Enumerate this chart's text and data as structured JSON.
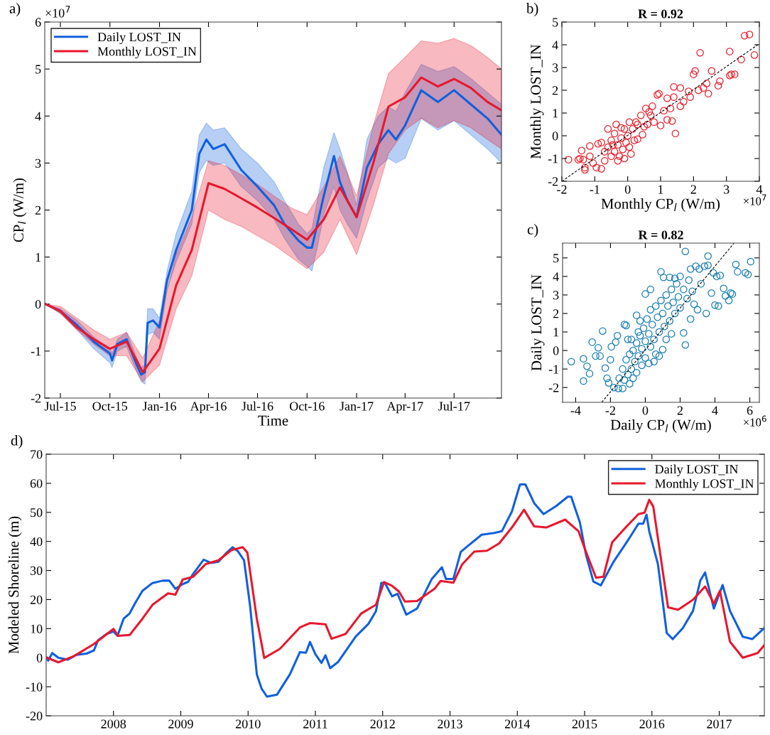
{
  "chart_data": [
    {
      "type": "line",
      "xlabel": "Time",
      "ylabel": "CP$_{l}$ (W/m)",
      "annotations": [
        "a)",
        "×10$^{7}$"
      ],
      "xlim": [
        "2015-06-02",
        "2017-09-27"
      ],
      "ylim": [
        -2,
        6
      ],
      "yticks": [
        -2,
        -1,
        0,
        1,
        2,
        3,
        4,
        5,
        6
      ],
      "xticks": [
        {
          "value": "2015-07-01",
          "label": "Jul-15"
        },
        {
          "value": "2015-10-01",
          "label": "Oct-15"
        },
        {
          "value": "2016-01-01",
          "label": "Jan-16"
        },
        {
          "value": "2016-04-01",
          "label": "Apr-16"
        },
        {
          "value": "2016-07-01",
          "label": "Jul-16"
        },
        {
          "value": "2016-10-01",
          "label": "Oct-16"
        },
        {
          "value": "2017-01-01",
          "label": "Jan-17"
        },
        {
          "value": "2017-04-01",
          "label": "Apr-17"
        },
        {
          "value": "2017-07-01",
          "label": "Jul-17"
        }
      ],
      "legend": "top left",
      "series": [
        {
          "name": "Daily LOST_IN",
          "color": "#1160dc",
          "x": [
            "2015-06-03",
            "2015-07-01",
            "2015-08-01",
            "2015-09-01",
            "2015-10-01",
            "2015-10-05",
            "2015-10-15",
            "2015-11-01",
            "2015-11-20",
            "2015-11-28",
            "2015-12-05",
            "2015-12-10",
            "2015-12-20",
            "2016-01-01",
            "2016-01-15",
            "2016-02-01",
            "2016-03-01",
            "2016-03-15",
            "2016-03-28",
            "2016-04-10",
            "2016-05-01",
            "2016-06-01",
            "2016-07-01",
            "2016-08-01",
            "2016-08-20",
            "2016-09-15",
            "2016-10-01",
            "2016-10-10",
            "2016-10-20",
            "2016-11-01",
            "2016-11-20",
            "2016-12-01",
            "2016-12-15",
            "2017-01-01",
            "2017-01-20",
            "2017-02-10",
            "2017-03-01",
            "2017-03-15",
            "2017-04-01",
            "2017-05-01",
            "2017-06-01",
            "2017-07-01",
            "2017-08-01",
            "2017-09-01",
            "2017-09-27"
          ],
          "values": [
            0,
            -0.15,
            -0.45,
            -0.8,
            -1.05,
            -1.2,
            -0.85,
            -0.75,
            -1.3,
            -1.5,
            -1.45,
            -0.4,
            -0.35,
            -0.5,
            0.5,
            1.15,
            2.0,
            3.2,
            3.5,
            3.3,
            3.4,
            2.85,
            2.5,
            2.1,
            1.7,
            1.35,
            1.2,
            1.2,
            1.7,
            2.3,
            3.15,
            2.6,
            2.2,
            1.85,
            2.9,
            3.4,
            3.7,
            3.5,
            3.8,
            4.55,
            4.3,
            4.55,
            4.25,
            3.95,
            3.6
          ],
          "upper": [
            0,
            -0.1,
            -0.35,
            -0.7,
            -0.95,
            -1.05,
            -0.75,
            -0.6,
            -1.15,
            -1.35,
            -1.3,
            -0.1,
            -0.1,
            -0.3,
            0.7,
            1.5,
            2.4,
            3.6,
            3.85,
            3.7,
            3.75,
            3.3,
            3.0,
            2.6,
            2.2,
            1.7,
            1.5,
            1.6,
            2.2,
            2.9,
            3.65,
            3.3,
            2.8,
            2.1,
            3.5,
            4.0,
            4.2,
            4.1,
            4.5,
            5.1,
            4.95,
            5.05,
            4.8,
            4.5,
            4.25
          ],
          "lower": [
            0,
            -0.2,
            -0.55,
            -0.95,
            -1.25,
            -1.35,
            -1.0,
            -0.9,
            -1.45,
            -1.65,
            -1.7,
            -0.65,
            -0.6,
            -0.75,
            0.3,
            0.9,
            1.7,
            2.8,
            3.05,
            2.95,
            3.0,
            2.5,
            2.2,
            1.8,
            1.4,
            0.95,
            0.8,
            0.7,
            1.2,
            1.9,
            2.5,
            2.0,
            1.7,
            1.4,
            2.2,
            2.9,
            3.1,
            3.0,
            3.1,
            3.95,
            3.7,
            3.9,
            3.6,
            3.3,
            3.0
          ]
        },
        {
          "name": "Monthly LOST_IN",
          "color": "#e8172d",
          "x": [
            "2015-06-03",
            "2015-07-01",
            "2015-08-01",
            "2015-09-01",
            "2015-10-01",
            "2015-11-01",
            "2015-12-01",
            "2016-01-01",
            "2016-02-01",
            "2016-03-01",
            "2016-04-01",
            "2016-05-01",
            "2016-06-01",
            "2016-07-01",
            "2016-08-01",
            "2016-09-01",
            "2016-10-01",
            "2016-11-01",
            "2016-12-01",
            "2017-01-01",
            "2017-02-01",
            "2017-03-01",
            "2017-04-01",
            "2017-05-01",
            "2017-06-01",
            "2017-07-01",
            "2017-08-01",
            "2017-09-01",
            "2017-09-27"
          ],
          "values": [
            0,
            -0.15,
            -0.5,
            -0.75,
            -0.95,
            -0.8,
            -1.45,
            -0.95,
            0.4,
            1.15,
            2.57,
            2.45,
            2.25,
            2.05,
            1.83,
            1.6,
            1.37,
            1.8,
            2.48,
            1.85,
            3.0,
            4.2,
            4.4,
            4.82,
            4.63,
            4.79,
            4.6,
            4.3,
            4.12
          ],
          "upper": [
            0,
            -0.05,
            -0.3,
            -0.55,
            -0.75,
            -0.6,
            -1.15,
            -0.35,
            1.05,
            1.85,
            3.05,
            2.95,
            2.75,
            2.55,
            2.3,
            2.05,
            1.9,
            2.5,
            3.15,
            2.3,
            3.8,
            4.9,
            5.25,
            5.6,
            5.55,
            5.65,
            5.5,
            5.25,
            5.0
          ],
          "lower": [
            0,
            -0.2,
            -0.55,
            -0.85,
            -1.1,
            -1.1,
            -1.65,
            -1.3,
            -0.1,
            0.6,
            2.0,
            1.8,
            1.65,
            1.45,
            1.25,
            1.0,
            0.75,
            1.1,
            1.8,
            1.05,
            2.1,
            3.2,
            3.7,
            3.95,
            3.75,
            3.9,
            3.75,
            3.5,
            3.3
          ]
        }
      ]
    },
    {
      "type": "scatter",
      "title": "R = 0.92",
      "xlabel": "Monthly CP$_{l}$ (W/m)",
      "ylabel": "Monthly LOST_IN",
      "annotations": [
        "b)",
        "×10$^{7}$"
      ],
      "xlim": [
        -2,
        4
      ],
      "xticks": [
        -2,
        -1,
        0,
        1,
        2,
        3,
        4
      ],
      "ylim": [
        -2,
        5
      ],
      "yticks": [
        -2,
        -1,
        0,
        1,
        2,
        3,
        4,
        5
      ],
      "series": [
        {
          "color": "#e8212e",
          "marker": "circle",
          "x": [
            -1.8,
            -1.5,
            -1.45,
            -1.35,
            -1.3,
            -1.3,
            -1.4,
            -1.15,
            -1.15,
            -1.05,
            -0.95,
            -0.8,
            -0.8,
            -0.9,
            -0.7,
            -0.6,
            -0.5,
            -0.35,
            -0.4,
            -0.3,
            -0.2,
            -0.1,
            -0.25,
            -0.15,
            -0.05,
            0,
            0.05,
            -0.1,
            -0.3,
            -0.5,
            -0.6,
            -0.4,
            0.1,
            0.15,
            0.2,
            0.3,
            0.3,
            0.4,
            0.5,
            0.55,
            0.6,
            0.7,
            0.75,
            0.8,
            0.9,
            0.95,
            1.0,
            1.1,
            1.2,
            1.3,
            1.2,
            1.4,
            1.35,
            1.45,
            1.4,
            1.6,
            1.6,
            1.7,
            1.9,
            1.85,
            2.0,
            2.05,
            2.15,
            2.2,
            2.3,
            2.4,
            2.45,
            2.55,
            2.75,
            2.8,
            3.1,
            3.1,
            3.15,
            3.25,
            3.45,
            3.55,
            3.7,
            3.85,
            0.25,
            -0.2,
            0.05,
            -0.7,
            0.45,
            0.65,
            -0.45
          ],
          "values": [
            -1.05,
            -1.05,
            -1.0,
            -1.05,
            -1.4,
            -1.5,
            -0.65,
            -0.9,
            -0.45,
            -1.2,
            -1.4,
            -1.45,
            -0.3,
            -0.35,
            -1.1,
            0.3,
            -0.2,
            0.5,
            -0.7,
            -0.4,
            -0.1,
            0.3,
            -0.9,
            -0.6,
            -0.3,
            0,
            0.6,
            -1.0,
            -1.1,
            -0.9,
            -0.5,
            0.1,
            -0.8,
            0.3,
            -0.2,
            0.5,
            -0.15,
            0.9,
            0.4,
            1.2,
            0.5,
            0.9,
            1.3,
            0.6,
            1.8,
            1.85,
            0.45,
            1.1,
            0.7,
            1.2,
            1.65,
            2.15,
            0.65,
            0.1,
            1.7,
            2.1,
            1.3,
            1.5,
            1.7,
            1.95,
            2.7,
            2.85,
            2.0,
            3.65,
            2.1,
            2.3,
            1.85,
            2.85,
            2.2,
            2.4,
            2.65,
            3.7,
            2.7,
            2.7,
            3.35,
            4.4,
            4.45,
            3.55,
            0.6,
            0.35,
            -0.5,
            -0.7,
            0.05,
            1.05,
            -0.4
          ]
        },
        {
          "type": "line",
          "color": "#000000",
          "line_style": "dashed",
          "x": [
            -2,
            4
          ],
          "values": [
            -2,
            4.05
          ]
        }
      ]
    },
    {
      "type": "scatter",
      "title": "R = 0.82",
      "xlabel": "Daily CP$_{l}$ (W/m)",
      "ylabel": "Daily LOST_IN",
      "annotations": [
        "c)",
        "×10$^{6}$"
      ],
      "xlim": [
        -4.75,
        6.55
      ],
      "xticks": [
        -4,
        -2,
        0,
        2,
        4,
        6
      ],
      "ylim": [
        -2.8,
        5.8
      ],
      "yticks": [
        -2,
        -1,
        0,
        1,
        2,
        3,
        4,
        5
      ],
      "series": [
        {
          "color": "#1a7fb0",
          "marker": "circle",
          "x": [
            -4.25,
            -3.55,
            -3.55,
            -3.35,
            -3.2,
            -3.05,
            -2.85,
            -2.7,
            -2.6,
            -2.45,
            -2.3,
            -2.2,
            -2.1,
            -2.0,
            -1.95,
            -1.8,
            -1.7,
            -1.6,
            -1.55,
            -1.3,
            -1.2,
            -1.1,
            -1.0,
            -0.9,
            -0.5,
            -0.3,
            0,
            0.3,
            0.2,
            0.5,
            0.8,
            1.0,
            0.9,
            1.05,
            1.4,
            1.7,
            2.0,
            2.2,
            2.3,
            2.3,
            2.6,
            2.9,
            3.1,
            3.4,
            3.6,
            3.6,
            3.9,
            4.1,
            4.3,
            3.5,
            3.8,
            4.0,
            4.2,
            4.5,
            4.6,
            4.8,
            4.9,
            5.0,
            5.2,
            5.3,
            5.75,
            5.9,
            6.05,
            3.0,
            2.6,
            3.2,
            -1.5,
            -1.3,
            -1.1,
            -1.0,
            -0.9,
            -0.8,
            -0.7,
            -0.6,
            -0.5,
            -0.5,
            -0.4,
            -0.3,
            -0.2,
            -0.2,
            -0.1,
            0,
            0,
            0.1,
            0.2,
            0.3,
            0.3,
            0.4,
            0.5,
            0.6,
            0.7,
            0.8,
            0.9,
            1.0,
            1.1,
            1.2,
            1.3,
            1.4,
            1.5,
            1.6,
            1.7,
            1.8,
            1.9,
            2.0,
            2.2,
            2.4,
            2.5,
            2.7,
            2.8,
            1.2,
            1.5,
            -1.2,
            -0.7,
            0.6,
            -0.8,
            -0.4
          ],
          "values": [
            -0.6,
            -1.65,
            -0.45,
            -0.85,
            -1.25,
            0.45,
            -0.3,
            0.15,
            -0.3,
            1.05,
            -0.95,
            -1.5,
            -1.75,
            -0.5,
            0.2,
            -2.0,
            0.45,
            0.8,
            -2.05,
            -2.05,
            1.4,
            1.35,
            0.6,
            -1.8,
            1.9,
            1.6,
            3.05,
            3.3,
            -0.7,
            -0.6,
            -0.3,
            0.05,
            4.25,
            3.95,
            3.95,
            3.9,
            4.0,
            0.95,
            0.3,
            5.35,
            4.4,
            4.55,
            4.4,
            4.55,
            5.1,
            4.6,
            4.2,
            4.0,
            4.05,
            2.0,
            3.1,
            2.45,
            2.4,
            3.35,
            2.95,
            2.7,
            3.1,
            3.05,
            4.65,
            4.25,
            4.2,
            4.1,
            4.8,
            2.2,
            1.7,
            3.6,
            -1.5,
            -1.0,
            -0.5,
            -1.3,
            -0.2,
            -1.0,
            0.0,
            -0.6,
            0.4,
            -1.2,
            -0.3,
            0.8,
            0.1,
            -0.8,
            1.2,
            0.5,
            -0.4,
            1.7,
            0.9,
            0.2,
            2.2,
            1.4,
            0.6,
            2.4,
            1.8,
            1.0,
            2.7,
            2.0,
            1.3,
            3.0,
            2.4,
            1.6,
            3.3,
            2.6,
            2.0,
            3.6,
            2.9,
            2.3,
            3.3,
            2.8,
            3.8,
            3.2,
            2.5,
            0.6,
            0.9,
            -1.6,
            -1.5,
            -0.2,
            0.6,
            1.0
          ]
        },
        {
          "type": "line",
          "color": "#000000",
          "line_style": "dashed",
          "x": [
            -2.5,
            5.1
          ],
          "values": [
            -2.8,
            5.8
          ]
        }
      ]
    },
    {
      "type": "line",
      "ylabel": "Modeled Shoreline (m)",
      "annotations": [
        "d)"
      ],
      "xlim": [
        2007.0,
        2017.67
      ],
      "xticks": [
        2008,
        2009,
        2010,
        2011,
        2012,
        2013,
        2014,
        2015,
        2016,
        2017
      ],
      "ylim": [
        -20,
        70
      ],
      "yticks": [
        -20,
        -10,
        0,
        10,
        20,
        30,
        40,
        50,
        60,
        70
      ],
      "legend": "top right",
      "series": [
        {
          "name": "Daily LOST_IN",
          "color": "#1160dc",
          "x": [
            2007.01,
            2007.03,
            2007.09,
            2007.18,
            2007.32,
            2007.45,
            2007.6,
            2007.71,
            2007.77,
            2007.9,
            2008.0,
            2008.06,
            2008.15,
            2008.24,
            2008.32,
            2008.43,
            2008.58,
            2008.73,
            2008.83,
            2008.92,
            2009.02,
            2009.11,
            2009.18,
            2009.34,
            2009.45,
            2009.56,
            2009.68,
            2009.77,
            2009.85,
            2009.94,
            2010.03,
            2010.13,
            2010.2,
            2010.28,
            2010.43,
            2010.62,
            2010.77,
            2010.86,
            2010.92,
            2011.0,
            2011.09,
            2011.15,
            2011.22,
            2011.34,
            2011.6,
            2011.79,
            2011.9,
            2011.98,
            2012.03,
            2012.14,
            2012.22,
            2012.35,
            2012.51,
            2012.73,
            2012.88,
            2012.94,
            2013.05,
            2013.16,
            2013.29,
            2013.47,
            2013.66,
            2013.77,
            2013.92,
            2014.04,
            2014.12,
            2014.25,
            2014.39,
            2014.58,
            2014.75,
            2014.8,
            2014.93,
            2015.02,
            2015.13,
            2015.24,
            2015.43,
            2015.65,
            2015.8,
            2015.87,
            2015.92,
            2015.96,
            2016.09,
            2016.22,
            2016.31,
            2016.46,
            2016.61,
            2016.72,
            2016.79,
            2016.92,
            2017.05,
            2017.16,
            2017.35,
            2017.49,
            2017.67
          ],
          "values": [
            0,
            -1,
            1.6,
            0,
            -0.7,
            1,
            1.4,
            2.5,
            6,
            8.2,
            9,
            7.5,
            13.4,
            15.2,
            18.7,
            23,
            25.7,
            26.5,
            26.5,
            23.7,
            25.2,
            26.1,
            28.7,
            33.7,
            32.6,
            33.0,
            36.1,
            38,
            36.6,
            33.5,
            17.8,
            -5.8,
            -10.6,
            -13.4,
            -12.7,
            -5.8,
            1.9,
            1.7,
            5.4,
            1.2,
            -1.8,
            0.8,
            -3.6,
            -1.4,
            7.3,
            11.7,
            16,
            25.7,
            25.8,
            21.1,
            22,
            14.8,
            16.9,
            27.1,
            31.1,
            27.1,
            27.1,
            36.4,
            38.9,
            42.3,
            42.9,
            43.5,
            50.3,
            59.6,
            59.6,
            53.2,
            49.4,
            52.2,
            55.4,
            55.4,
            46.5,
            35.5,
            26.2,
            24.9,
            33,
            40.6,
            46.1,
            46.1,
            49.2,
            43.5,
            32.1,
            8.5,
            6.4,
            10.2,
            16.1,
            26.6,
            29.3,
            16.9,
            25,
            16.1,
            7.2,
            6.4,
            10.2
          ]
        },
        {
          "name": "Monthly LOST_IN",
          "color": "#e8172d",
          "x": [
            2007.01,
            2007.18,
            2007.41,
            2007.71,
            2008.0,
            2008.07,
            2008.24,
            2008.43,
            2008.58,
            2008.81,
            2008.92,
            2009.03,
            2009.18,
            2009.37,
            2009.56,
            2009.75,
            2009.92,
            2009.99,
            2010.13,
            2010.24,
            2010.47,
            2010.77,
            2010.92,
            2011.15,
            2011.24,
            2011.45,
            2011.68,
            2011.9,
            2012.02,
            2012.14,
            2012.24,
            2012.33,
            2012.51,
            2012.77,
            2012.86,
            2013.05,
            2013.18,
            2013.36,
            2013.55,
            2013.73,
            2013.92,
            2014.1,
            2014.25,
            2014.43,
            2014.71,
            2014.91,
            2015.02,
            2015.17,
            2015.28,
            2015.41,
            2015.61,
            2015.8,
            2015.89,
            2015.96,
            2016.02,
            2016.24,
            2016.39,
            2016.61,
            2016.79,
            2016.92,
            2017.01,
            2017.16,
            2017.35,
            2017.57,
            2017.67
          ],
          "values": [
            0,
            -1.6,
            0.5,
            4.7,
            9.9,
            7.5,
            7.8,
            13.4,
            18.2,
            22.1,
            21.7,
            26.9,
            27.8,
            32.2,
            33.5,
            37,
            38,
            36.1,
            13.4,
            -0.1,
            3,
            10.4,
            11.9,
            11.5,
            6.5,
            8.2,
            15.2,
            18.2,
            26,
            24.7,
            22.8,
            19.3,
            19.5,
            23.7,
            26.4,
            25.8,
            32.1,
            36.5,
            36.8,
            39.3,
            44.8,
            50.9,
            45.2,
            44.8,
            47.5,
            43.5,
            36.4,
            27.5,
            27.9,
            39.7,
            44.8,
            49.4,
            49.9,
            54.3,
            52,
            17.3,
            16.5,
            19.9,
            24.5,
            18.6,
            23,
            5.5,
            0,
            1.6,
            4.3
          ]
        }
      ]
    }
  ]
}
